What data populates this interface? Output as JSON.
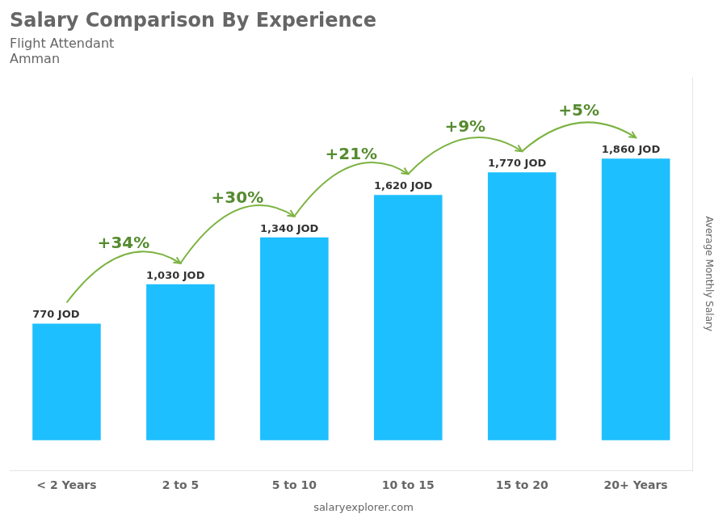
{
  "chart_data": {
    "type": "bar",
    "title": "Salary Comparison By Experience",
    "subtitle": [
      "Flight Attendant",
      "Amman"
    ],
    "y_label": "Average Monthly Salary",
    "categories": [
      "< 2 Years",
      "2 to 5",
      "5 to 10",
      "10 to 15",
      "15 to 20",
      "20+ Years"
    ],
    "values": [
      770,
      1030,
      1340,
      1620,
      1770,
      1860
    ],
    "value_labels": [
      "770 JOD",
      "1,030 JOD",
      "1,340 JOD",
      "1,620 JOD",
      "1,770 JOD",
      "1,860 JOD"
    ],
    "data_labels": true,
    "color": "#1EBFFF",
    "ylim": [
      -200,
      2400
    ],
    "grid": false,
    "tick_labels": "x",
    "annotations": [
      {
        "text": "+34%",
        "from": "< 2 Years",
        "to": "2 to 5"
      },
      {
        "text": "+30%",
        "from": "2 to 5",
        "to": "5 to 10"
      },
      {
        "text": "+21%",
        "from": "5 to 10",
        "to": "10 to 15"
      },
      {
        "text": "+9%",
        "from": "10 to 15",
        "to": "15 to 20"
      },
      {
        "text": "+5%",
        "from": "15 to 20",
        "to": "20+ Years"
      }
    ],
    "footer": "salaryexplorer.com"
  }
}
